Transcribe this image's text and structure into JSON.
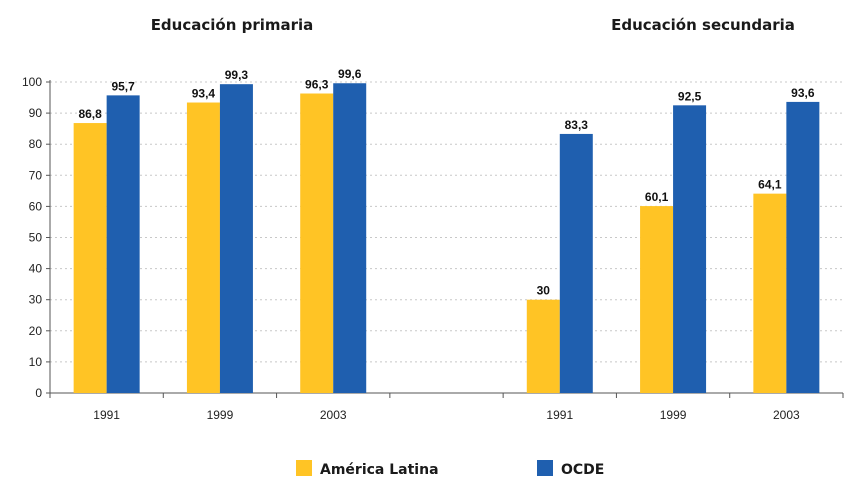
{
  "chart_data": {
    "type": "bar",
    "panels": [
      {
        "title": "Educación primaria",
        "categories": [
          "1991",
          "1999",
          "2003"
        ],
        "series": [
          {
            "name": "América Latina",
            "values": [
              86.8,
              93.4,
              96.3
            ],
            "labels": [
              "86,8",
              "93,4",
              "96,3"
            ]
          },
          {
            "name": "OCDE",
            "values": [
              95.7,
              99.3,
              99.6
            ],
            "labels": [
              "95,7",
              "99,3",
              "99,6"
            ]
          }
        ]
      },
      {
        "title": "Educación secundaria",
        "categories": [
          "1991",
          "1999",
          "2003"
        ],
        "series": [
          {
            "name": "América Latina",
            "values": [
              30,
              60.1,
              64.1
            ],
            "labels": [
              "30",
              "60,1",
              "64,1"
            ]
          },
          {
            "name": "OCDE",
            "values": [
              83.3,
              92.5,
              93.6
            ],
            "labels": [
              "83,3",
              "92,5",
              "93,6"
            ]
          }
        ]
      }
    ],
    "ylim": [
      0,
      100
    ],
    "yticks": [
      "0",
      "10",
      "20",
      "30",
      "40",
      "50",
      "60",
      "70",
      "80",
      "90",
      "100"
    ],
    "grid": true,
    "legend": {
      "position": "bottom",
      "entries": [
        {
          "name": "América Latina",
          "color": "#FFC425"
        },
        {
          "name": "OCDE",
          "color": "#1F5FAF"
        }
      ]
    },
    "colors": {
      "america_latina": "#FFC425",
      "ocde": "#1F5FAF",
      "grid": "#c8c8c8",
      "axis": "#555555"
    }
  }
}
